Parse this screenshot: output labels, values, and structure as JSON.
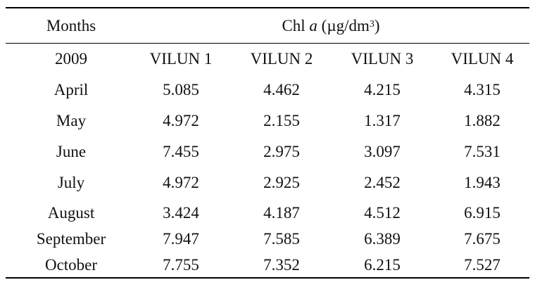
{
  "table": {
    "header": {
      "months": "Months",
      "measure_prefix": "Chl ",
      "measure_italic": "a",
      "measure_unit": " (µg/dm",
      "measure_exp": "3",
      "measure_close": ")"
    },
    "subheader": {
      "year": "2009",
      "stations": [
        "VILUN 1",
        "VILUN 2",
        "VILUN 3",
        "VILUN 4"
      ]
    },
    "rows": [
      {
        "month": "April",
        "values": [
          "5.085",
          "4.462",
          "4.215",
          "4.315"
        ]
      },
      {
        "month": "May",
        "values": [
          "4.972",
          "2.155",
          "1.317",
          "1.882"
        ]
      },
      {
        "month": "June",
        "values": [
          "7.455",
          "2.975",
          "3.097",
          "7.531"
        ]
      },
      {
        "month": "July",
        "values": [
          "4.972",
          "2.925",
          "2.452",
          "1.943"
        ]
      },
      {
        "month": "August",
        "values": [
          "3.424",
          "4.187",
          "4.512",
          "6.915"
        ]
      },
      {
        "month": "September",
        "values": [
          "7.947",
          "7.585",
          "6.389",
          "7.675"
        ]
      },
      {
        "month": "October",
        "values": [
          "7.755",
          "7.352",
          "6.215",
          "7.527"
        ]
      }
    ]
  }
}
